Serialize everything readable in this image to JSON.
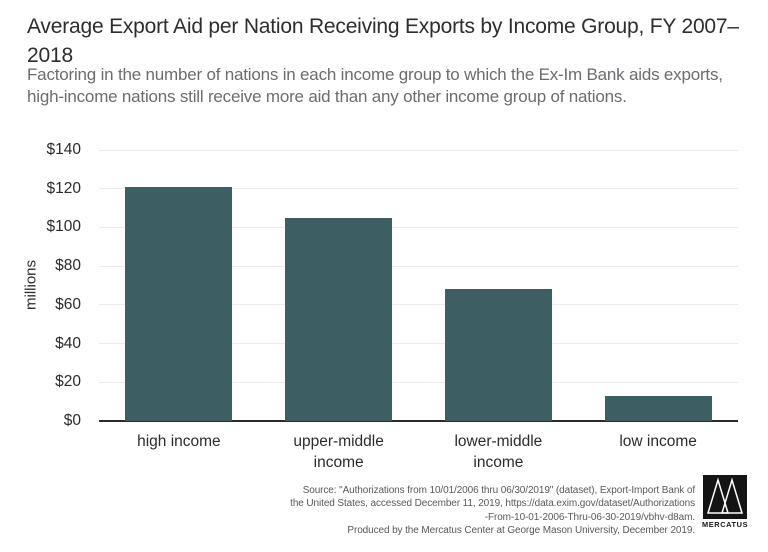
{
  "header": {
    "title": "Average Export Aid per Nation Receiving Exports by Income Group, FY 2007–2018",
    "subtitle": "Factoring in the number of nations in each income group to which the Ex-Im Bank aids exports, high-income nations still receive more aid than any other income group of nations."
  },
  "chart_data": {
    "type": "bar",
    "title": "Average Export Aid per Nation Receiving Exports by Income Group, FY 2007–2018",
    "categories": [
      "high income",
      "upper-middle income",
      "lower-middle income",
      "low income"
    ],
    "values": [
      121,
      105,
      68,
      13
    ],
    "xlabel": "",
    "ylabel": "millions",
    "ylim": [
      0,
      140
    ],
    "ytick_step": 20,
    "ytick_labels_top_to_bottom": [
      "$140",
      "$120",
      "$100",
      "$80",
      "$60",
      "$40",
      "$20",
      "$0"
    ],
    "grid": true,
    "legend_position": "none",
    "bar_color": "#3d5f64",
    "gridline_color": "#ebebeb",
    "axis_color": "#2b2b2b"
  },
  "footer": {
    "source_lines": [
      "Source: \"Authorizations from 10/01/2006 thru 06/30/2019\" (dataset), Export-Import Bank of",
      "the United States, accessed December 11, 2019, https://data.exim.gov/dataset/Authorizations",
      "-From-10-01-2006-Thru-06-30-2019/vbhv-d8am.",
      "Produced by the Mercatus Center at George Mason University, December 2019."
    ],
    "logo_text": "MERCATUS"
  }
}
